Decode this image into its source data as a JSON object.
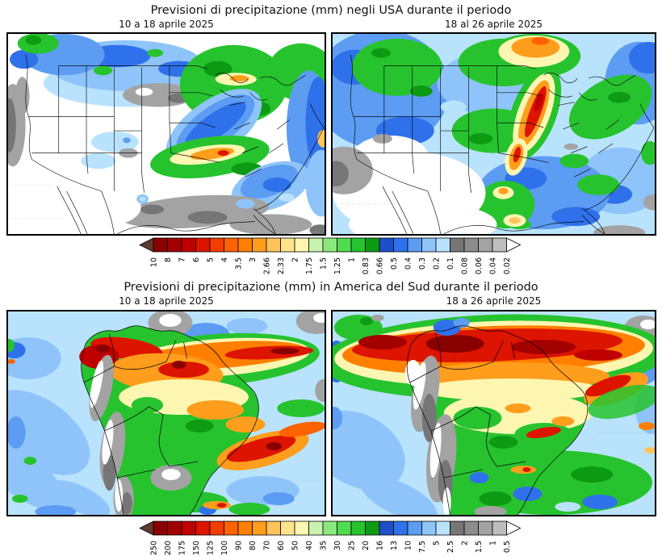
{
  "panels": [
    {
      "id": "usa",
      "title": "Previsioni di precipitazione (mm) negli USA durante il periodo",
      "maps": [
        {
          "label": "10 a 18 aprile 2025"
        },
        {
          "label": "18 al 26 aprile 2025"
        }
      ],
      "colorbar": {
        "boundary_labels": [
          "10",
          "8",
          "7",
          "6",
          "5",
          "4",
          "3.5",
          "3",
          "2.66",
          "2.33",
          "2",
          "1.75",
          "1.5",
          "1.25",
          "1",
          "0.83",
          "0.66",
          "0.5",
          "0.4",
          "0.3",
          "0.2",
          "0.1",
          "0.08",
          "0.06",
          "0.04",
          "0.02"
        ]
      }
    },
    {
      "id": "south-america",
      "title": "Previsioni di precipitazione (mm) in America del Sud durante il periodo",
      "maps": [
        {
          "label": "10 a 18 aprile 2025"
        },
        {
          "label": "18 a 26 aprile 2025"
        }
      ],
      "colorbar": {
        "boundary_labels": [
          "250",
          "200",
          "175",
          "150",
          "125",
          "100",
          "90",
          "80",
          "70",
          "60",
          "50",
          "40",
          "35",
          "30",
          "25",
          "20",
          "16",
          "13",
          "10",
          "7.5",
          "5",
          "2.5",
          "2",
          "1.5",
          "1",
          "0.5"
        ]
      }
    }
  ],
  "palette": {
    "cell_colors": [
      "#8a0000",
      "#a30000",
      "#bf0000",
      "#dd1400",
      "#f43d00",
      "#ff6300",
      "#ff8000",
      "#ff9d1c",
      "#ffc35c",
      "#ffe48a",
      "#fcf6b1",
      "#c9f2ae",
      "#8ce87e",
      "#4fdc50",
      "#27c32f",
      "#0c9b13",
      "#1f4fc8",
      "#2f71ea",
      "#5c9cf2",
      "#8ec4f9",
      "#b9e3fd",
      "#767676",
      "#8c8c8c",
      "#a3a3a3",
      "#bdbdbd"
    ],
    "high_arrow_color": "#5f3a2e",
    "low_arrow_color": "#ffffff",
    "cell_border_color": "#000000",
    "label_color": "#000000"
  }
}
